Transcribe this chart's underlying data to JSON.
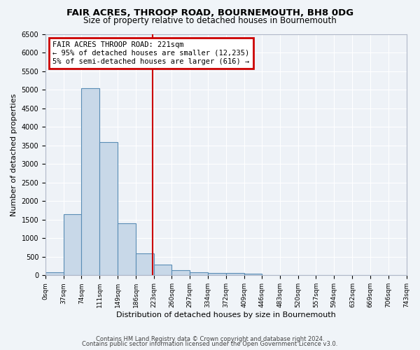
{
  "title1": "FAIR ACRES, THROOP ROAD, BOURNEMOUTH, BH8 0DG",
  "title2": "Size of property relative to detached houses in Bournemouth",
  "xlabel": "Distribution of detached houses by size in Bournemouth",
  "ylabel": "Number of detached properties",
  "bar_color": "#c8d8e8",
  "bar_edge_color": "#5a8db5",
  "bin_edges": [
    0,
    37,
    74,
    111,
    149,
    186,
    223,
    260,
    297,
    334,
    372,
    409,
    446,
    483,
    520,
    557,
    594,
    632,
    669,
    706,
    743
  ],
  "bar_heights": [
    75,
    1650,
    5050,
    3600,
    1400,
    600,
    290,
    140,
    85,
    60,
    55,
    45,
    0,
    0,
    0,
    0,
    0,
    0,
    0,
    0
  ],
  "red_line_x": 221,
  "annotation_title": "FAIR ACRES THROOP ROAD: 221sqm",
  "annotation_line1": "← 95% of detached houses are smaller (12,235)",
  "annotation_line2": "5% of semi-detached houses are larger (616) →",
  "ylim": [
    0,
    6500
  ],
  "yticks": [
    0,
    500,
    1000,
    1500,
    2000,
    2500,
    3000,
    3500,
    4000,
    4500,
    5000,
    5500,
    6000,
    6500
  ],
  "tick_labels": [
    "0sqm",
    "37sqm",
    "74sqm",
    "111sqm",
    "149sqm",
    "186sqm",
    "223sqm",
    "260sqm",
    "297sqm",
    "334sqm",
    "372sqm",
    "409sqm",
    "446sqm",
    "483sqm",
    "520sqm",
    "557sqm",
    "594sqm",
    "632sqm",
    "669sqm",
    "706sqm",
    "743sqm"
  ],
  "annotation_box_color": "#ffffff",
  "annotation_box_edge_color": "#cc0000",
  "red_line_color": "#cc0000",
  "bg_color": "#eef2f7",
  "grid_color": "#ffffff",
  "footer1": "Contains HM Land Registry data © Crown copyright and database right 2024.",
  "footer2": "Contains public sector information licensed under the Open Government Licence v3.0."
}
